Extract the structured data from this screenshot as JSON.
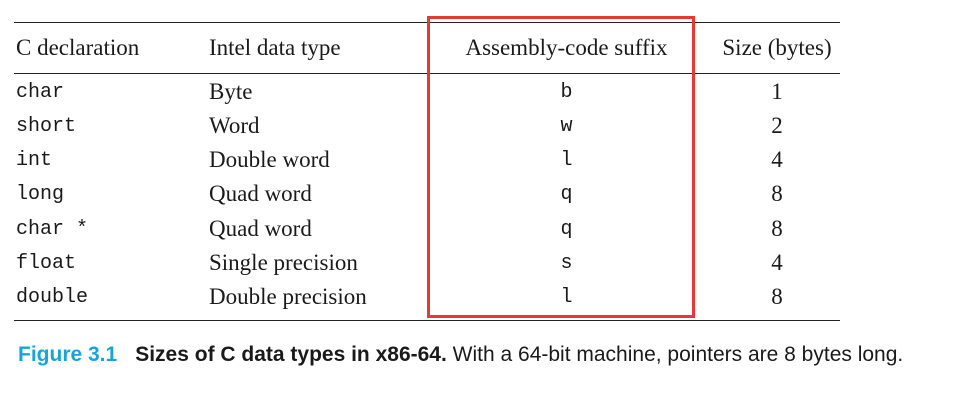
{
  "table": {
    "headers": [
      "C declaration",
      "Intel data type",
      "Assembly-code suffix",
      "Size (bytes)"
    ],
    "rows": [
      [
        "char",
        "Byte",
        "b",
        "1"
      ],
      [
        "short",
        "Word",
        "w",
        "2"
      ],
      [
        "int",
        "Double word",
        "l",
        "4"
      ],
      [
        "long",
        "Quad word",
        "q",
        "8"
      ],
      [
        "char *",
        "Quad word",
        "q",
        "8"
      ],
      [
        "float",
        "Single precision",
        "s",
        "4"
      ],
      [
        "double",
        "Double precision",
        "l",
        "8"
      ]
    ]
  },
  "highlight": {
    "color": "#e53935"
  },
  "caption": {
    "label": "Figure 3.1",
    "title": "Sizes of C data types in x86-64.",
    "text": "With a 64-bit machine, pointers are 8 bytes long.",
    "label_color": "#1aa3d9"
  }
}
